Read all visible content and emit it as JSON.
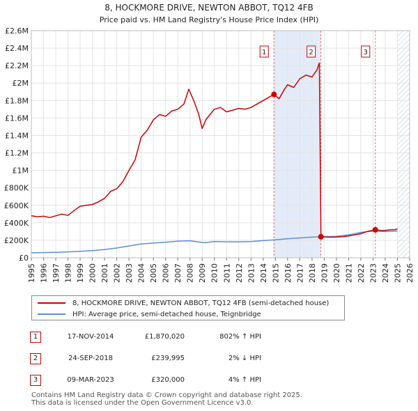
{
  "chart_data": {
    "type": "line",
    "title": "8, HOCKMORE DRIVE, NEWTON ABBOT, TQ12 4FB",
    "subtitle": "Price paid vs. HM Land Registry's House Price Index (HPI)",
    "xlabel": "",
    "ylabel": "",
    "xlim": [
      1995,
      2026
    ],
    "ylim": [
      0,
      2600000
    ],
    "x_ticks": [
      "1995",
      "1996",
      "1997",
      "1998",
      "1999",
      "2000",
      "2001",
      "2002",
      "2003",
      "2004",
      "2005",
      "2006",
      "2007",
      "2008",
      "2009",
      "2010",
      "2011",
      "2012",
      "2013",
      "2014",
      "2015",
      "2016",
      "2017",
      "2018",
      "2019",
      "2020",
      "2021",
      "2022",
      "2023",
      "2024",
      "2025",
      "2026"
    ],
    "y_ticks": [
      {
        "value": 0,
        "label": "£0"
      },
      {
        "value": 200000,
        "label": "£200K"
      },
      {
        "value": 400000,
        "label": "£400K"
      },
      {
        "value": 600000,
        "label": "£600K"
      },
      {
        "value": 800000,
        "label": "£800K"
      },
      {
        "value": 1000000,
        "label": "£1M"
      },
      {
        "value": 1200000,
        "label": "£1.2M"
      },
      {
        "value": 1400000,
        "label": "£1.4M"
      },
      {
        "value": 1600000,
        "label": "£1.6M"
      },
      {
        "value": 1800000,
        "label": "£1.8M"
      },
      {
        "value": 2000000,
        "label": "£2M"
      },
      {
        "value": 2200000,
        "label": "£2.2M"
      },
      {
        "value": 2400000,
        "label": "£2.4M"
      },
      {
        "value": 2600000,
        "label": "£2.6M"
      }
    ],
    "grid": true,
    "shaded_ranges": [
      [
        2014.88,
        2018.73
      ]
    ],
    "hatched_from": 2025.0,
    "series": [
      {
        "name": "8, HOCKMORE DRIVE, NEWTON ABBOT, TQ12 4FB (semi-detached house)",
        "color": "#cc0000",
        "points": [
          [
            1995.0,
            480000
          ],
          [
            1995.5,
            470000
          ],
          [
            1996.0,
            475000
          ],
          [
            1996.5,
            460000
          ],
          [
            1997.0,
            480000
          ],
          [
            1997.5,
            500000
          ],
          [
            1998.0,
            485000
          ],
          [
            1998.5,
            540000
          ],
          [
            1999.0,
            590000
          ],
          [
            1999.5,
            600000
          ],
          [
            2000.0,
            610000
          ],
          [
            2000.5,
            640000
          ],
          [
            2001.0,
            680000
          ],
          [
            2001.5,
            760000
          ],
          [
            2002.0,
            790000
          ],
          [
            2002.5,
            870000
          ],
          [
            2003.0,
            1000000
          ],
          [
            2003.5,
            1120000
          ],
          [
            2004.0,
            1380000
          ],
          [
            2004.5,
            1460000
          ],
          [
            2005.0,
            1580000
          ],
          [
            2005.5,
            1640000
          ],
          [
            2006.0,
            1620000
          ],
          [
            2006.5,
            1680000
          ],
          [
            2007.0,
            1700000
          ],
          [
            2007.5,
            1760000
          ],
          [
            2007.9,
            1930000
          ],
          [
            2008.3,
            1800000
          ],
          [
            2008.7,
            1650000
          ],
          [
            2009.0,
            1480000
          ],
          [
            2009.3,
            1580000
          ],
          [
            2009.7,
            1650000
          ],
          [
            2010.0,
            1700000
          ],
          [
            2010.5,
            1720000
          ],
          [
            2011.0,
            1670000
          ],
          [
            2011.5,
            1690000
          ],
          [
            2012.0,
            1710000
          ],
          [
            2012.5,
            1700000
          ],
          [
            2013.0,
            1720000
          ],
          [
            2013.5,
            1760000
          ],
          [
            2014.0,
            1800000
          ],
          [
            2014.5,
            1840000
          ],
          [
            2014.88,
            1870020
          ],
          [
            2015.3,
            1820000
          ],
          [
            2015.7,
            1920000
          ],
          [
            2016.0,
            1980000
          ],
          [
            2016.5,
            1950000
          ],
          [
            2017.0,
            2050000
          ],
          [
            2017.5,
            2090000
          ],
          [
            2018.0,
            2070000
          ],
          [
            2018.4,
            2150000
          ],
          [
            2018.6,
            2230000
          ],
          [
            2018.73,
            239995
          ],
          [
            2019.5,
            235000
          ],
          [
            2020.0,
            238000
          ],
          [
            2020.5,
            242000
          ],
          [
            2021.0,
            250000
          ],
          [
            2021.5,
            262000
          ],
          [
            2022.0,
            275000
          ],
          [
            2022.5,
            300000
          ],
          [
            2023.19,
            320000
          ],
          [
            2023.8,
            310000
          ],
          [
            2024.3,
            318000
          ],
          [
            2024.8,
            322000
          ],
          [
            2025.0,
            330000
          ]
        ]
      },
      {
        "name": "HPI: Average price, semi-detached house, Teignbridge",
        "color": "#5b8fd6",
        "points": [
          [
            1995.0,
            57000
          ],
          [
            1996.0,
            59000
          ],
          [
            1997.0,
            62000
          ],
          [
            1998.0,
            67000
          ],
          [
            1999.0,
            73000
          ],
          [
            2000.0,
            82000
          ],
          [
            2001.0,
            93000
          ],
          [
            2002.0,
            112000
          ],
          [
            2003.0,
            135000
          ],
          [
            2004.0,
            158000
          ],
          [
            2005.0,
            168000
          ],
          [
            2006.0,
            178000
          ],
          [
            2007.0,
            190000
          ],
          [
            2008.0,
            195000
          ],
          [
            2008.7,
            180000
          ],
          [
            2009.2,
            172000
          ],
          [
            2010.0,
            185000
          ],
          [
            2011.0,
            183000
          ],
          [
            2012.0,
            182000
          ],
          [
            2013.0,
            186000
          ],
          [
            2014.0,
            196000
          ],
          [
            2015.0,
            206000
          ],
          [
            2016.0,
            217000
          ],
          [
            2017.0,
            227000
          ],
          [
            2018.0,
            236000
          ],
          [
            2019.0,
            240000
          ],
          [
            2020.0,
            245000
          ],
          [
            2021.0,
            262000
          ],
          [
            2022.0,
            290000
          ],
          [
            2023.0,
            305000
          ],
          [
            2024.0,
            300000
          ],
          [
            2025.0,
            306000
          ]
        ]
      }
    ],
    "markers": [
      {
        "label": "1",
        "x": 2014.88,
        "y": 1870020
      },
      {
        "label": "2",
        "x": 2018.73,
        "y": 239995
      },
      {
        "label": "3",
        "x": 2023.19,
        "y": 320000
      }
    ]
  },
  "legend": {
    "items": [
      {
        "label": "8, HOCKMORE DRIVE, NEWTON ABBOT, TQ12 4FB (semi-detached house)",
        "color": "#cc0000"
      },
      {
        "label": "HPI: Average price, semi-detached house, Teignbridge",
        "color": "#5b8fd6"
      }
    ]
  },
  "transactions": [
    {
      "num": "1",
      "date": "17-NOV-2014",
      "price": "£1,870,020",
      "hpi": "802% ↑ HPI"
    },
    {
      "num": "2",
      "date": "24-SEP-2018",
      "price": "£239,995",
      "hpi": "2% ↓ HPI"
    },
    {
      "num": "3",
      "date": "09-MAR-2023",
      "price": "£320,000",
      "hpi": "4% ↑ HPI"
    }
  ],
  "footer": {
    "line1": "Contains HM Land Registry data © Crown copyright and database right 2025.",
    "line2": "This data is licensed under the Open Government Licence v3.0."
  }
}
